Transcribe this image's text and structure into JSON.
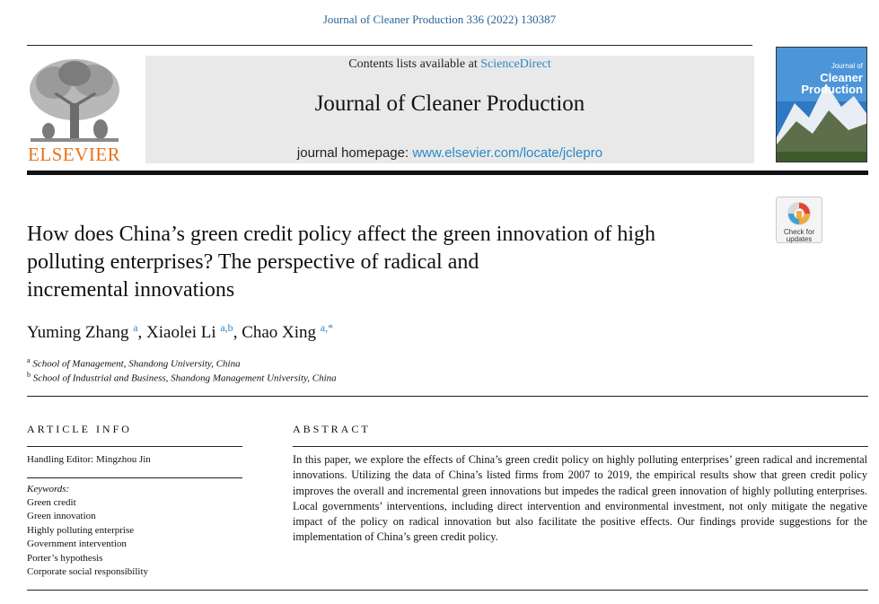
{
  "citation": "Journal of Cleaner Production 336 (2022) 130387",
  "publisher": {
    "name": "ELSEVIER"
  },
  "header": {
    "contents_prefix": "Contents lists available at ",
    "contents_link": "ScienceDirect",
    "journal_title": "Journal of Cleaner Production",
    "homepage_prefix": "journal homepage: ",
    "homepage_link": "www.elsevier.com/locate/jclepro"
  },
  "cover": {
    "line1": "Journal of",
    "line2": "Cleaner",
    "line3": "Production"
  },
  "check_updates": {
    "line1": "Check for",
    "line2": "updates"
  },
  "article": {
    "title_lines": [
      "How does China’s green credit policy affect the green innovation of high",
      "polluting enterprises? The perspective of radical and",
      "incremental innovations"
    ],
    "authors": [
      {
        "name": "Yuming Zhang",
        "sup": "a"
      },
      {
        "name": "Xiaolei Li",
        "sup": "a,b"
      },
      {
        "name": "Chao Xing",
        "sup": "a,*"
      }
    ],
    "affiliations": [
      {
        "mark": "a",
        "text": "School of Management, Shandong University, China"
      },
      {
        "mark": "b",
        "text": "School of Industrial and Business, Shandong Management University, China"
      }
    ]
  },
  "article_info": {
    "heading": "ARTICLE INFO",
    "handling_editor": "Handling Editor: Mingzhou Jin",
    "keywords_label": "Keywords:",
    "keywords": [
      "Green credit",
      "Green innovation",
      "Highly polluting enterprise",
      "Government intervention",
      "Porter’s hypothesis",
      "Corporate social responsibility"
    ]
  },
  "abstract": {
    "heading": "ABSTRACT",
    "text": "In this paper, we explore the effects of China’s green credit policy on highly polluting enterprises’ green radical and incremental innovations. Utilizing the data of China’s listed firms from 2007 to 2019, the empirical results show that green credit policy improves the overall and incremental green innovations but impedes the radical green innovation of highly polluting enterprises. Local governments’ interventions, including direct intervention and environmental investment, not only mitigate the negative impact of the policy on radical innovation but also facilitate the positive effects. Our findings provide suggestions for the implementation of China’s green credit policy."
  },
  "colors": {
    "link": "#2a88c8",
    "citation": "#2a6496",
    "elsevier_orange": "#e9711c",
    "header_bg": "#e9e9e9"
  }
}
